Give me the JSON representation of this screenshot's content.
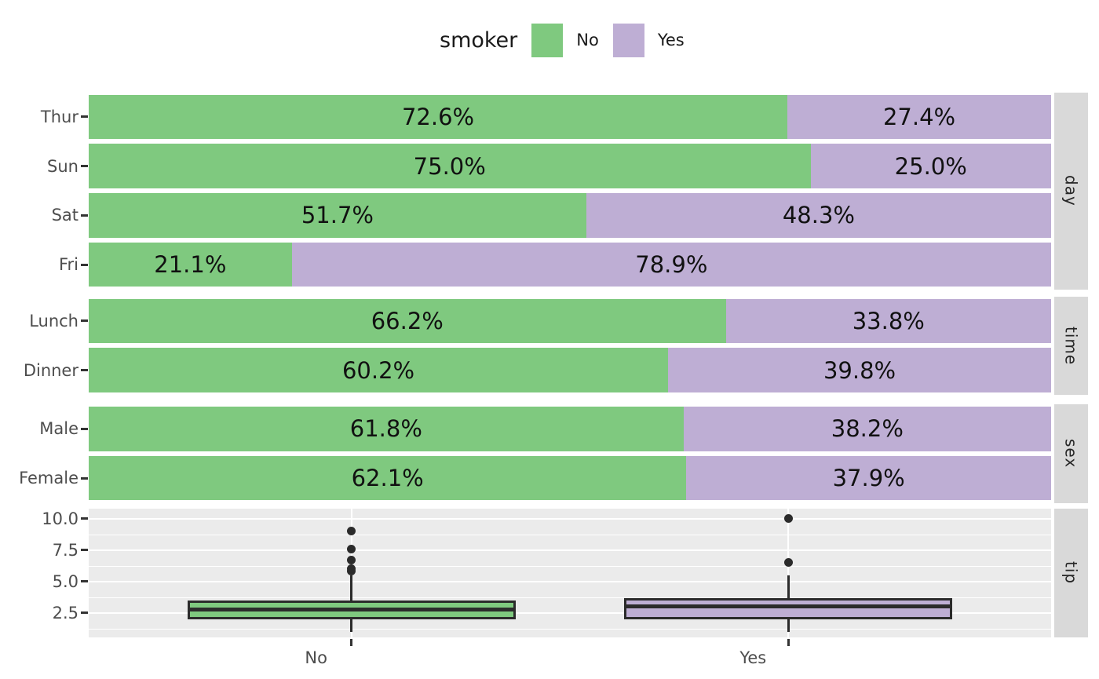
{
  "legend": {
    "title": "smoker",
    "items": [
      {
        "label": "No",
        "color": "#7fc97f"
      },
      {
        "label": "Yes",
        "color": "#beaed4"
      }
    ]
  },
  "colors": {
    "no": "#7fc97f",
    "yes": "#beaed4",
    "box_line": "#2b2b2b",
    "panel_bg": "#ebebeb",
    "strip_bg": "#d9d9d9",
    "grid": "#ffffff",
    "axis_text": "#4d4d4d",
    "label_text": "#111111"
  },
  "chart_data": {
    "type": "mixed",
    "legend_title": "smoker",
    "series": [
      "No",
      "Yes"
    ],
    "legend_position": "top",
    "facet_strip_side": "right",
    "facets": [
      {
        "name": "day",
        "type": "stacked_bar_100_horizontal",
        "categories": [
          "Thur",
          "Sun",
          "Sat",
          "Fri"
        ],
        "series": [
          {
            "name": "No",
            "values": [
              72.6,
              75.0,
              51.7,
              21.1
            ]
          },
          {
            "name": "Yes",
            "values": [
              27.4,
              25.0,
              48.3,
              78.9
            ]
          }
        ],
        "bar_labels": [
          [
            "72.6%",
            "27.4%"
          ],
          [
            "75.0%",
            "25.0%"
          ],
          [
            "51.7%",
            "48.3%"
          ],
          [
            "21.1%",
            "78.9%"
          ]
        ]
      },
      {
        "name": "time",
        "type": "stacked_bar_100_horizontal",
        "categories": [
          "Lunch",
          "Dinner"
        ],
        "series": [
          {
            "name": "No",
            "values": [
              66.2,
              60.2
            ]
          },
          {
            "name": "Yes",
            "values": [
              33.8,
              39.8
            ]
          }
        ],
        "bar_labels": [
          [
            "66.2%",
            "33.8%"
          ],
          [
            "60.2%",
            "39.8%"
          ]
        ]
      },
      {
        "name": "sex",
        "type": "stacked_bar_100_horizontal",
        "categories": [
          "Male",
          "Female"
        ],
        "series": [
          {
            "name": "No",
            "values": [
              61.8,
              62.1
            ]
          },
          {
            "name": "Yes",
            "values": [
              38.2,
              37.9
            ]
          }
        ],
        "bar_labels": [
          [
            "61.8%",
            "38.2%"
          ],
          [
            "62.1%",
            "37.9%"
          ]
        ]
      },
      {
        "name": "tip",
        "type": "box",
        "categories": [
          "No",
          "Yes"
        ],
        "ylim": [
          0.55,
          10.8
        ],
        "y_ticks": [
          {
            "value": 2.5,
            "label": "2.5"
          },
          {
            "value": 5.0,
            "label": "5.0"
          },
          {
            "value": 7.5,
            "label": "7.5"
          },
          {
            "value": 10.0,
            "label": "10.0"
          }
        ],
        "y_minor_ticks": [
          1.25,
          3.75,
          6.25,
          8.75
        ],
        "boxes": [
          {
            "category": "No",
            "whisker_low": 1.0,
            "q1": 2.0,
            "median": 2.74,
            "q3": 3.5,
            "whisker_high": 5.5,
            "outliers": [
              5.85,
              6.0,
              6.7,
              7.6,
              9.0
            ]
          },
          {
            "category": "Yes",
            "whisker_low": 1.0,
            "q1": 2.0,
            "median": 3.0,
            "q3": 3.68,
            "whisker_high": 5.5,
            "outliers": [
              6.5,
              10.0
            ]
          }
        ]
      }
    ]
  }
}
